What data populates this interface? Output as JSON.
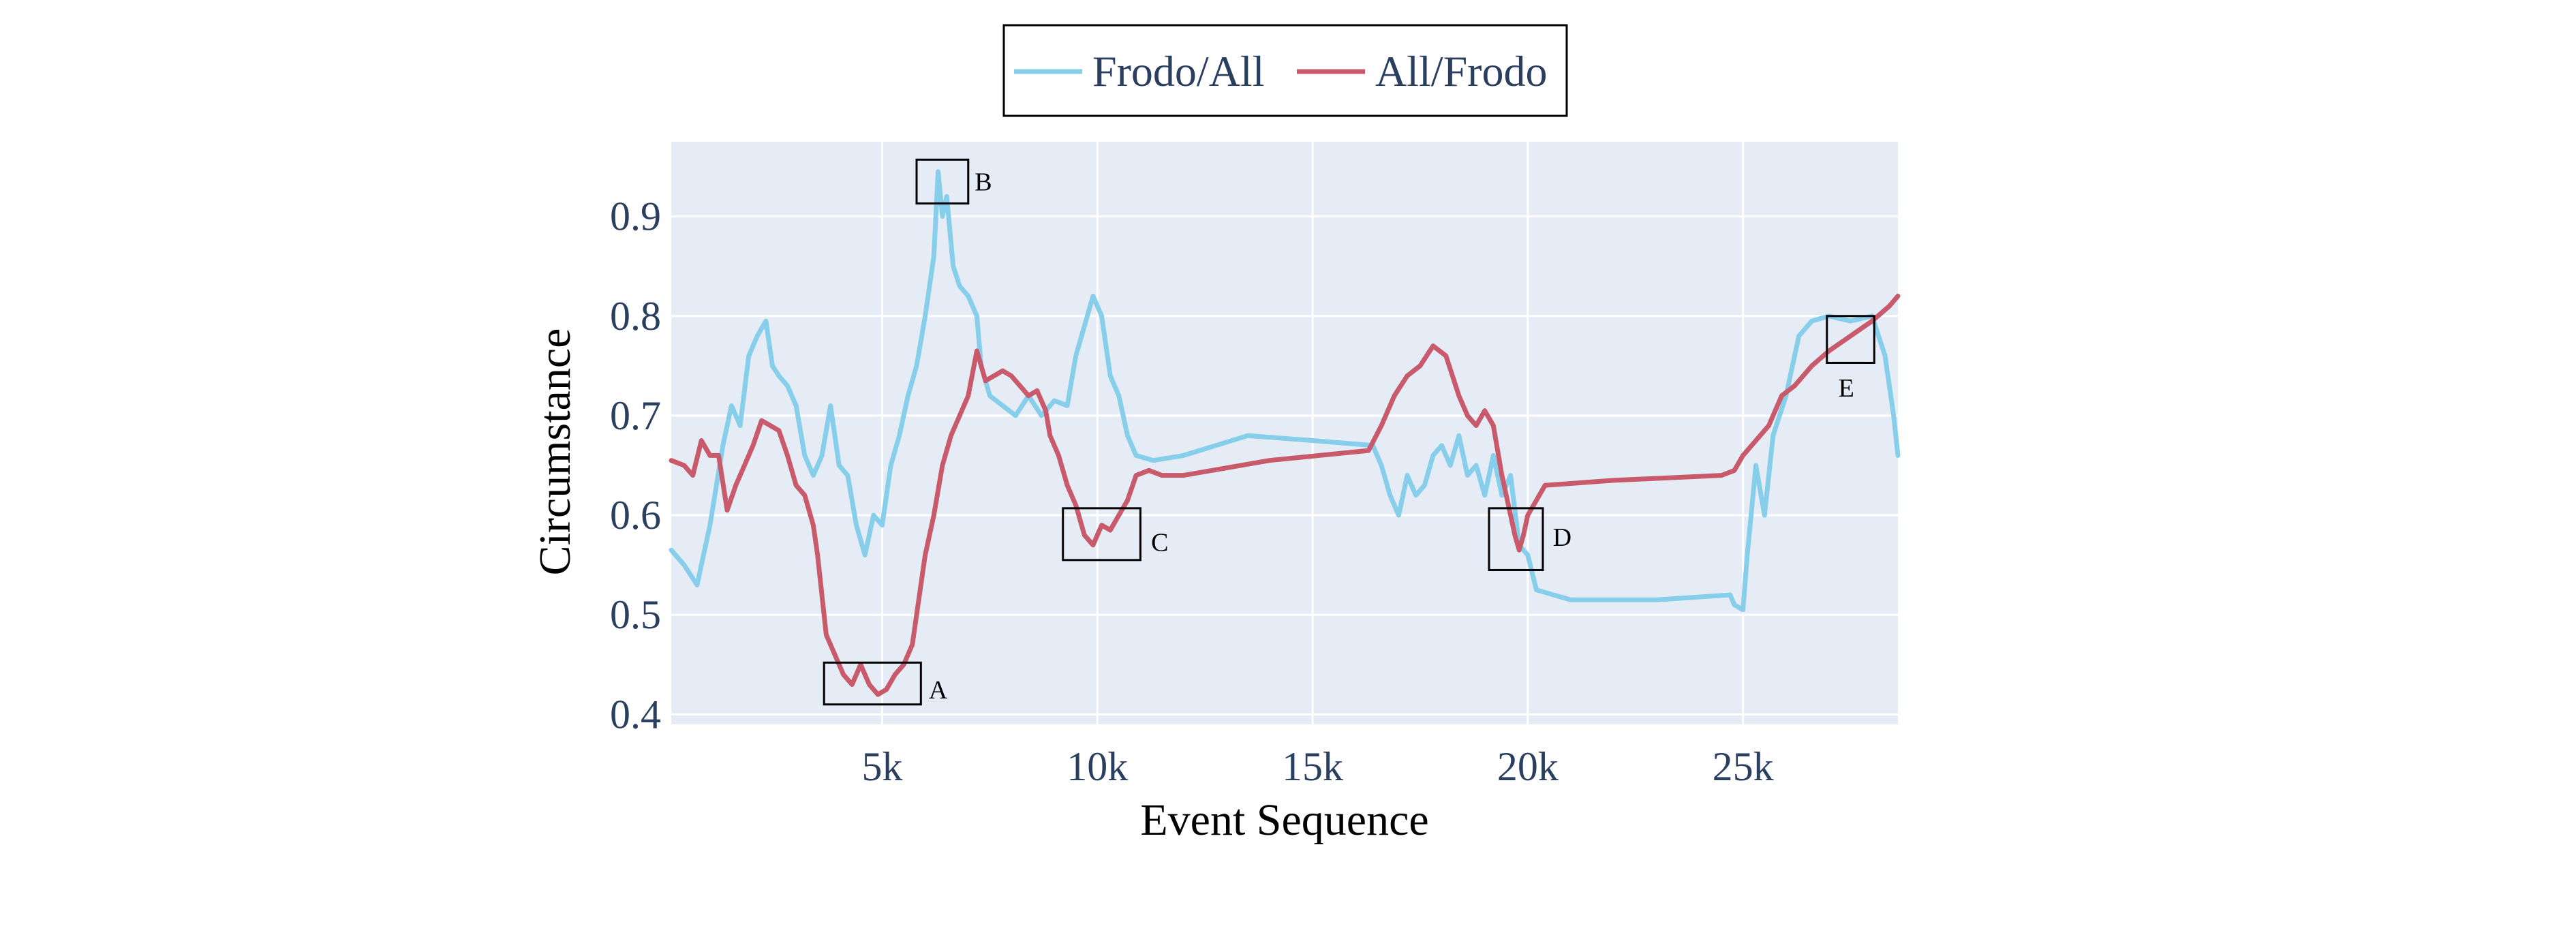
{
  "chart_data": {
    "type": "line",
    "xlabel": "Event Sequence",
    "ylabel": "Circumstance",
    "xlim": [
      100,
      28600
    ],
    "ylim": [
      0.39,
      0.975
    ],
    "grid": true,
    "legend_placement": "top-center",
    "background_color": "#e5ecf6",
    "x_ticks": [
      {
        "value": 5000,
        "label": "5k"
      },
      {
        "value": 10000,
        "label": "10k"
      },
      {
        "value": 15000,
        "label": "15k"
      },
      {
        "value": 20000,
        "label": "20k"
      },
      {
        "value": 25000,
        "label": "25k"
      }
    ],
    "y_ticks": [
      {
        "value": 0.4,
        "label": "0.4"
      },
      {
        "value": 0.5,
        "label": "0.5"
      },
      {
        "value": 0.6,
        "label": "0.6"
      },
      {
        "value": 0.7,
        "label": "0.7"
      },
      {
        "value": 0.8,
        "label": "0.8"
      },
      {
        "value": 0.9,
        "label": "0.9"
      }
    ],
    "series": [
      {
        "name": "Frodo/All",
        "color": "#87ceeb",
        "points": [
          [
            100,
            0.565
          ],
          [
            400,
            0.55
          ],
          [
            700,
            0.53
          ],
          [
            1000,
            0.59
          ],
          [
            1300,
            0.67
          ],
          [
            1500,
            0.71
          ],
          [
            1700,
            0.69
          ],
          [
            1900,
            0.76
          ],
          [
            2100,
            0.78
          ],
          [
            2300,
            0.795
          ],
          [
            2450,
            0.75
          ],
          [
            2600,
            0.74
          ],
          [
            2800,
            0.73
          ],
          [
            3000,
            0.71
          ],
          [
            3200,
            0.66
          ],
          [
            3400,
            0.64
          ],
          [
            3600,
            0.66
          ],
          [
            3800,
            0.71
          ],
          [
            4000,
            0.65
          ],
          [
            4200,
            0.64
          ],
          [
            4400,
            0.59
          ],
          [
            4600,
            0.56
          ],
          [
            4800,
            0.6
          ],
          [
            5000,
            0.59
          ],
          [
            5200,
            0.65
          ],
          [
            5400,
            0.68
          ],
          [
            5600,
            0.72
          ],
          [
            5800,
            0.75
          ],
          [
            6000,
            0.8
          ],
          [
            6200,
            0.86
          ],
          [
            6300,
            0.945
          ],
          [
            6400,
            0.9
          ],
          [
            6500,
            0.92
          ],
          [
            6650,
            0.85
          ],
          [
            6800,
            0.83
          ],
          [
            7000,
            0.82
          ],
          [
            7200,
            0.8
          ],
          [
            7300,
            0.75
          ],
          [
            7500,
            0.72
          ],
          [
            7800,
            0.71
          ],
          [
            8100,
            0.7
          ],
          [
            8400,
            0.72
          ],
          [
            8700,
            0.7
          ],
          [
            9000,
            0.715
          ],
          [
            9300,
            0.71
          ],
          [
            9500,
            0.76
          ],
          [
            9700,
            0.79
          ],
          [
            9900,
            0.82
          ],
          [
            10100,
            0.8
          ],
          [
            10300,
            0.74
          ],
          [
            10500,
            0.72
          ],
          [
            10700,
            0.68
          ],
          [
            10900,
            0.66
          ],
          [
            11300,
            0.655
          ],
          [
            12000,
            0.66
          ],
          [
            13500,
            0.68
          ],
          [
            15000,
            0.675
          ],
          [
            16400,
            0.67
          ],
          [
            16600,
            0.65
          ],
          [
            16800,
            0.62
          ],
          [
            17000,
            0.6
          ],
          [
            17200,
            0.64
          ],
          [
            17400,
            0.62
          ],
          [
            17600,
            0.63
          ],
          [
            17800,
            0.66
          ],
          [
            18000,
            0.67
          ],
          [
            18200,
            0.65
          ],
          [
            18400,
            0.68
          ],
          [
            18600,
            0.64
          ],
          [
            18800,
            0.65
          ],
          [
            19000,
            0.62
          ],
          [
            19200,
            0.66
          ],
          [
            19400,
            0.62
          ],
          [
            19600,
            0.64
          ],
          [
            19800,
            0.57
          ],
          [
            20000,
            0.56
          ],
          [
            20200,
            0.525
          ],
          [
            21000,
            0.515
          ],
          [
            23000,
            0.515
          ],
          [
            24700,
            0.52
          ],
          [
            24800,
            0.51
          ],
          [
            25000,
            0.505
          ],
          [
            25100,
            0.56
          ],
          [
            25300,
            0.65
          ],
          [
            25500,
            0.6
          ],
          [
            25700,
            0.68
          ],
          [
            26000,
            0.72
          ],
          [
            26300,
            0.78
          ],
          [
            26600,
            0.795
          ],
          [
            27000,
            0.8
          ],
          [
            27500,
            0.795
          ],
          [
            28000,
            0.8
          ],
          [
            28300,
            0.76
          ],
          [
            28500,
            0.7
          ],
          [
            28600,
            0.66
          ]
        ]
      },
      {
        "name": "All/Frodo",
        "color": "#c85a6c",
        "points": [
          [
            100,
            0.655
          ],
          [
            400,
            0.65
          ],
          [
            600,
            0.64
          ],
          [
            800,
            0.675
          ],
          [
            1000,
            0.66
          ],
          [
            1200,
            0.66
          ],
          [
            1400,
            0.605
          ],
          [
            1600,
            0.63
          ],
          [
            1800,
            0.65
          ],
          [
            2000,
            0.67
          ],
          [
            2200,
            0.695
          ],
          [
            2400,
            0.69
          ],
          [
            2600,
            0.685
          ],
          [
            2800,
            0.66
          ],
          [
            3000,
            0.63
          ],
          [
            3200,
            0.62
          ],
          [
            3400,
            0.59
          ],
          [
            3500,
            0.56
          ],
          [
            3700,
            0.48
          ],
          [
            3900,
            0.46
          ],
          [
            4100,
            0.44
          ],
          [
            4300,
            0.43
          ],
          [
            4500,
            0.45
          ],
          [
            4700,
            0.43
          ],
          [
            4900,
            0.42
          ],
          [
            5100,
            0.425
          ],
          [
            5300,
            0.44
          ],
          [
            5500,
            0.45
          ],
          [
            5700,
            0.47
          ],
          [
            5800,
            0.5
          ],
          [
            6000,
            0.56
          ],
          [
            6200,
            0.6
          ],
          [
            6400,
            0.65
          ],
          [
            6600,
            0.68
          ],
          [
            6800,
            0.7
          ],
          [
            7000,
            0.72
          ],
          [
            7200,
            0.765
          ],
          [
            7400,
            0.735
          ],
          [
            7600,
            0.74
          ],
          [
            7800,
            0.745
          ],
          [
            8000,
            0.74
          ],
          [
            8200,
            0.73
          ],
          [
            8400,
            0.72
          ],
          [
            8600,
            0.725
          ],
          [
            8800,
            0.705
          ],
          [
            8900,
            0.68
          ],
          [
            9100,
            0.66
          ],
          [
            9300,
            0.63
          ],
          [
            9500,
            0.61
          ],
          [
            9700,
            0.58
          ],
          [
            9900,
            0.57
          ],
          [
            10100,
            0.59
          ],
          [
            10300,
            0.585
          ],
          [
            10500,
            0.6
          ],
          [
            10700,
            0.615
          ],
          [
            10900,
            0.64
          ],
          [
            11200,
            0.645
          ],
          [
            11500,
            0.64
          ],
          [
            12000,
            0.64
          ],
          [
            14000,
            0.655
          ],
          [
            16300,
            0.665
          ],
          [
            16600,
            0.69
          ],
          [
            16900,
            0.72
          ],
          [
            17200,
            0.74
          ],
          [
            17500,
            0.75
          ],
          [
            17800,
            0.77
          ],
          [
            18100,
            0.76
          ],
          [
            18400,
            0.72
          ],
          [
            18600,
            0.7
          ],
          [
            18800,
            0.69
          ],
          [
            19000,
            0.705
          ],
          [
            19200,
            0.69
          ],
          [
            19400,
            0.64
          ],
          [
            19600,
            0.6
          ],
          [
            19700,
            0.58
          ],
          [
            19800,
            0.565
          ],
          [
            19900,
            0.58
          ],
          [
            20000,
            0.6
          ],
          [
            20200,
            0.615
          ],
          [
            20400,
            0.63
          ],
          [
            22000,
            0.635
          ],
          [
            24500,
            0.64
          ],
          [
            24800,
            0.645
          ],
          [
            25000,
            0.66
          ],
          [
            25300,
            0.675
          ],
          [
            25600,
            0.69
          ],
          [
            25900,
            0.72
          ],
          [
            26200,
            0.73
          ],
          [
            26600,
            0.75
          ],
          [
            27000,
            0.765
          ],
          [
            27500,
            0.78
          ],
          [
            28000,
            0.795
          ],
          [
            28400,
            0.81
          ],
          [
            28600,
            0.82
          ]
        ]
      }
    ],
    "annotations": [
      {
        "label": "A",
        "x0": 3650,
        "x1": 5900,
        "y0": 0.41,
        "y1": 0.452,
        "label_x": 6300,
        "label_y": 0.425
      },
      {
        "label": "B",
        "x0": 5800,
        "x1": 7000,
        "y0": 0.913,
        "y1": 0.957,
        "label_x": 7350,
        "label_y": 0.935
      },
      {
        "label": "C",
        "x0": 9200,
        "x1": 11000,
        "y0": 0.555,
        "y1": 0.607,
        "label_x": 11450,
        "label_y": 0.573
      },
      {
        "label": "D",
        "x0": 19100,
        "x1": 20350,
        "y0": 0.545,
        "y1": 0.607,
        "label_x": 20800,
        "label_y": 0.578
      },
      {
        "label": "E",
        "x0": 26950,
        "x1": 28050,
        "y0": 0.753,
        "y1": 0.8,
        "label_x": 27400,
        "label_y": 0.728
      }
    ]
  }
}
